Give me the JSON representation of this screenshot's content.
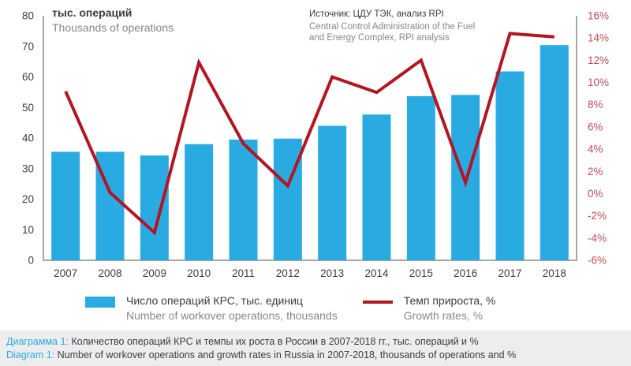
{
  "header": {
    "title_ru": "тыс. операций",
    "title_en": "Thousands of operations",
    "source_ru": "Источник: ЦДУ ТЭК, анализ RPI",
    "source_en_line1": "Central Control Administration of the Fuel",
    "source_en_line2": "and Energy Complex, RPI analysis"
  },
  "chart_data": {
    "type": "bar",
    "subtype": "bar+line combo",
    "categories": [
      "2007",
      "2008",
      "2009",
      "2010",
      "2011",
      "2012",
      "2013",
      "2014",
      "2015",
      "2016",
      "2017",
      "2018"
    ],
    "series": [
      {
        "name": "Число операций КРС, тыс. единиц",
        "name_en": "Number of workover operations, thousands",
        "type": "bar",
        "axis": "left",
        "color": "#29ABE2",
        "values": [
          35.5,
          35.5,
          34.3,
          38.0,
          39.5,
          39.8,
          44.0,
          47.7,
          53.7,
          54.1,
          61.8,
          70.4
        ]
      },
      {
        "name": "Темп прироста, %",
        "name_en": "Growth rates, %",
        "type": "line",
        "axis": "right",
        "color": "#B11622",
        "values": [
          9.2,
          0.1,
          -3.5,
          11.8,
          4.5,
          0.7,
          10.5,
          9.1,
          12.0,
          1.0,
          14.4,
          14.1
        ]
      }
    ],
    "left_axis": {
      "min": 0,
      "max": 80,
      "step": 10,
      "suffix": "",
      "label_ru": "тыс. операций",
      "label_en": "Thousands of operations",
      "text_color": "#3C3C3B"
    },
    "right_axis": {
      "min": -6,
      "max": 16,
      "step": 2,
      "suffix": "%",
      "text_color": "#BE4B55"
    },
    "grid": false,
    "legend_position": "bottom",
    "axis_line_color": "#A6A6A6",
    "x_label_color": "#3C3C3B"
  },
  "caption": {
    "ru_label": "Диаграмма 1:",
    "ru_text": " Количество операций КРС и темпы их роста в России в 2007-2018 гг., тыс. операций и %",
    "en_label": "Diagram 1:",
    "en_text": " Number of workover operations and growth rates in Russia in 2007-2018, thousands of operations and %"
  }
}
